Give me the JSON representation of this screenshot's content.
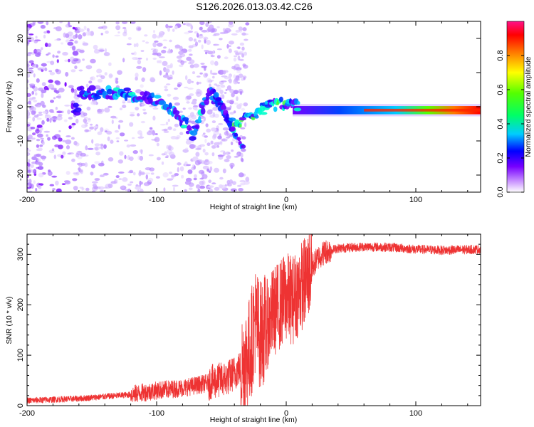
{
  "title": "S126.2026.013.03.42.C26",
  "chart_data": [
    {
      "type": "heatmap",
      "xlabel": "Height of straight line (km)",
      "ylabel": "Frequency (Hz)",
      "xlim": [
        -200,
        150
      ],
      "ylim": [
        -25,
        25
      ],
      "xticks": [
        "-200",
        "-100",
        "0",
        "100"
      ],
      "yticks": [
        "20",
        "10",
        "0",
        "-10",
        "-20"
      ],
      "colorbar": {
        "label": "Normalized spectral amplitude",
        "range": [
          0,
          1
        ],
        "ticks": [
          "0.0",
          "0.2",
          "0.4",
          "0.6",
          "0.8"
        ]
      },
      "ridge": [
        {
          "x": -160,
          "freq": 4
        },
        {
          "x": -140,
          "freq": 4
        },
        {
          "x": -120,
          "freq": 3.5
        },
        {
          "x": -100,
          "freq": 2
        },
        {
          "x": -90,
          "freq": 0
        },
        {
          "x": -80,
          "freq": -4
        },
        {
          "x": -72,
          "freq": -8
        },
        {
          "x": -60,
          "freq": 4
        },
        {
          "x": -50,
          "freq": 0
        },
        {
          "x": -40,
          "freq": -6
        },
        {
          "x": -33,
          "freq": -4
        },
        {
          "x": -25,
          "freq": -2
        },
        {
          "x": -15,
          "freq": 0
        },
        {
          "x": 0,
          "freq": 1
        },
        {
          "x": 25,
          "freq": -1
        },
        {
          "x": 100,
          "freq": -1
        },
        {
          "x": 150,
          "freq": -1
        }
      ]
    },
    {
      "type": "line",
      "xlabel": "Height of straight line (km)",
      "ylabel": "SNR (10 * v/v)",
      "xlim": [
        -200,
        150
      ],
      "ylim": [
        0,
        340
      ],
      "xticks": [
        "-200",
        "-100",
        "0",
        "100"
      ],
      "yticks": [
        "300",
        "200",
        "100",
        "0"
      ],
      "series": [
        {
          "color": "#ee3333",
          "points": [
            {
              "x": -200,
              "y": 10
            },
            {
              "x": -180,
              "y": 12
            },
            {
              "x": -160,
              "y": 14
            },
            {
              "x": -140,
              "y": 18
            },
            {
              "x": -120,
              "y": 22
            },
            {
              "x": -100,
              "y": 30
            },
            {
              "x": -80,
              "y": 35
            },
            {
              "x": -60,
              "y": 45
            },
            {
              "x": -45,
              "y": 55
            },
            {
              "x": -35,
              "y": 75
            },
            {
              "x": -28,
              "y": 110
            },
            {
              "x": -24,
              "y": 170
            },
            {
              "x": -20,
              "y": 140
            },
            {
              "x": -15,
              "y": 160
            },
            {
              "x": -10,
              "y": 185
            },
            {
              "x": -5,
              "y": 200
            },
            {
              "x": 0,
              "y": 215
            },
            {
              "x": 5,
              "y": 210
            },
            {
              "x": 10,
              "y": 230
            },
            {
              "x": 15,
              "y": 250
            },
            {
              "x": 20,
              "y": 275
            },
            {
              "x": 25,
              "y": 295
            },
            {
              "x": 30,
              "y": 305
            },
            {
              "x": 40,
              "y": 312
            },
            {
              "x": 60,
              "y": 315
            },
            {
              "x": 80,
              "y": 314
            },
            {
              "x": 100,
              "y": 310
            },
            {
              "x": 120,
              "y": 308
            },
            {
              "x": 150,
              "y": 310
            }
          ]
        }
      ]
    }
  ]
}
